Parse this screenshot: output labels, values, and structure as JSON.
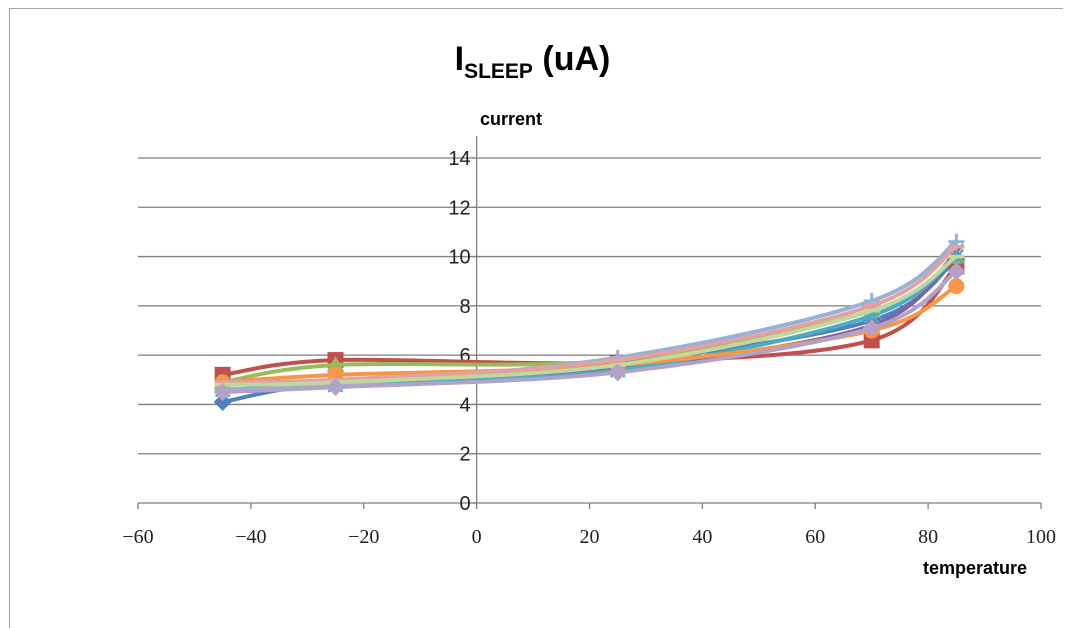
{
  "chart_data": {
    "type": "line",
    "title": "I",
    "title_subscript": "SLEEP",
    "title_suffix": " (uA)",
    "xlabel": "temperature",
    "ylabel": "current",
    "xlim": [
      -60,
      100
    ],
    "ylim": [
      0,
      14
    ],
    "xticks": [
      "−60",
      "−40",
      "−20",
      "0",
      "20",
      "40",
      "60",
      "80",
      "100"
    ],
    "xtick_values": [
      -60,
      -40,
      -20,
      0,
      20,
      40,
      60,
      80,
      100
    ],
    "yticks": [
      "0",
      "2",
      "4",
      "6",
      "8",
      "10",
      "12",
      "14"
    ],
    "ytick_values": [
      0,
      2,
      4,
      6,
      8,
      10,
      12,
      14
    ],
    "grid": true,
    "legend": "none",
    "x": [
      -45,
      -25,
      25,
      70,
      85
    ],
    "series": [
      {
        "values": [
          4.1,
          4.9,
          5.7,
          7.4,
          9.9
        ],
        "color": "#4f81bd",
        "marker": "diamond"
      },
      {
        "values": [
          5.2,
          5.8,
          5.7,
          6.6,
          9.6
        ],
        "color": "#c0504d",
        "marker": "square"
      },
      {
        "values": [
          4.9,
          5.6,
          5.8,
          7.8,
          10.0
        ],
        "color": "#9bbb59",
        "marker": "triangle"
      },
      {
        "values": [
          4.8,
          4.9,
          5.5,
          7.2,
          10.2
        ],
        "color": "#8064a2",
        "marker": "x"
      },
      {
        "values": [
          4.6,
          4.8,
          5.4,
          7.6,
          10.0
        ],
        "color": "#4bacc6",
        "marker": "star"
      },
      {
        "values": [
          4.9,
          5.2,
          5.6,
          7.0,
          8.8
        ],
        "color": "#f79646",
        "marker": "circle"
      },
      {
        "values": [
          4.6,
          4.8,
          5.9,
          8.2,
          10.6
        ],
        "color": "#95b3d7",
        "marker": "plus"
      },
      {
        "values": [
          4.9,
          5.0,
          5.8,
          8.0,
          10.4
        ],
        "color": "#e6a0a0",
        "marker": "dash"
      },
      {
        "values": [
          4.8,
          4.9,
          5.6,
          7.8,
          10.0
        ],
        "color": "#c3d69b",
        "marker": "dash"
      },
      {
        "values": [
          4.5,
          4.7,
          5.3,
          7.1,
          9.4
        ],
        "color": "#b3a2c7",
        "marker": "diamond"
      }
    ]
  }
}
